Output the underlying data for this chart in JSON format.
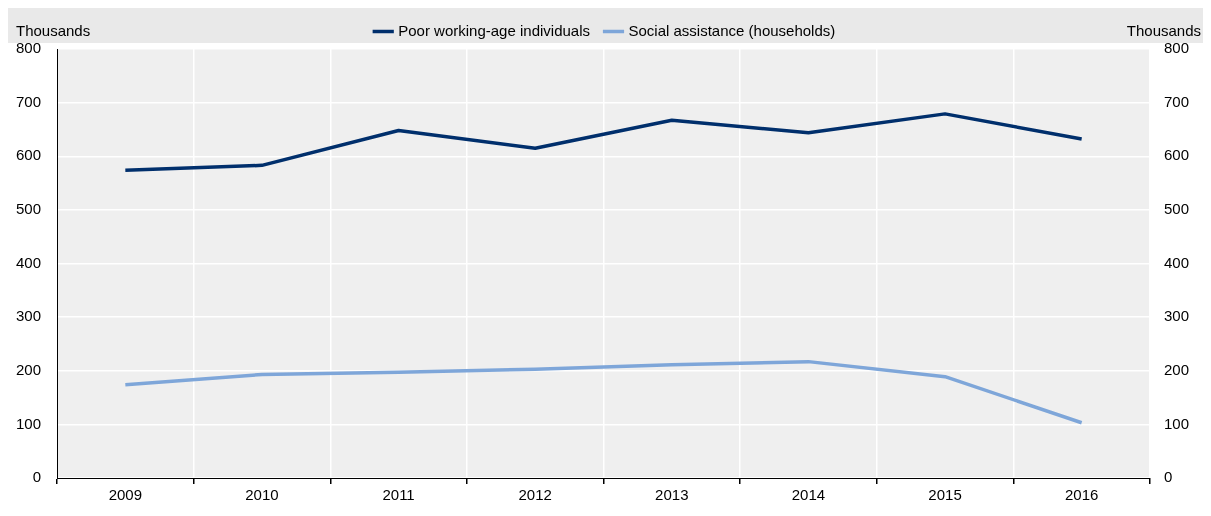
{
  "chart_data": {
    "type": "line",
    "categories": [
      "2009",
      "2010",
      "2011",
      "2012",
      "2013",
      "2014",
      "2015",
      "2016"
    ],
    "series": [
      {
        "name": "Poor working-age individuals",
        "color": "#002f6c",
        "values": [
          574,
          583,
          648,
          615,
          667,
          644,
          679,
          632
        ]
      },
      {
        "name": "Social assistance (households)",
        "color": "#7ea6d9",
        "values": [
          174,
          193,
          197,
          203,
          211,
          217,
          189,
          103
        ]
      }
    ],
    "ylabel": "Thousands",
    "y2label": "Thousands",
    "ylim": [
      0,
      800
    ],
    "yticks": [
      0,
      100,
      200,
      300,
      400,
      500,
      600,
      700,
      800
    ],
    "y2lim": [
      0,
      800
    ],
    "y2ticks": [
      0,
      100,
      200,
      300,
      400,
      500,
      600,
      700,
      800
    ],
    "grid": true,
    "legend": "top",
    "marker": "none",
    "line_style": "solid"
  }
}
